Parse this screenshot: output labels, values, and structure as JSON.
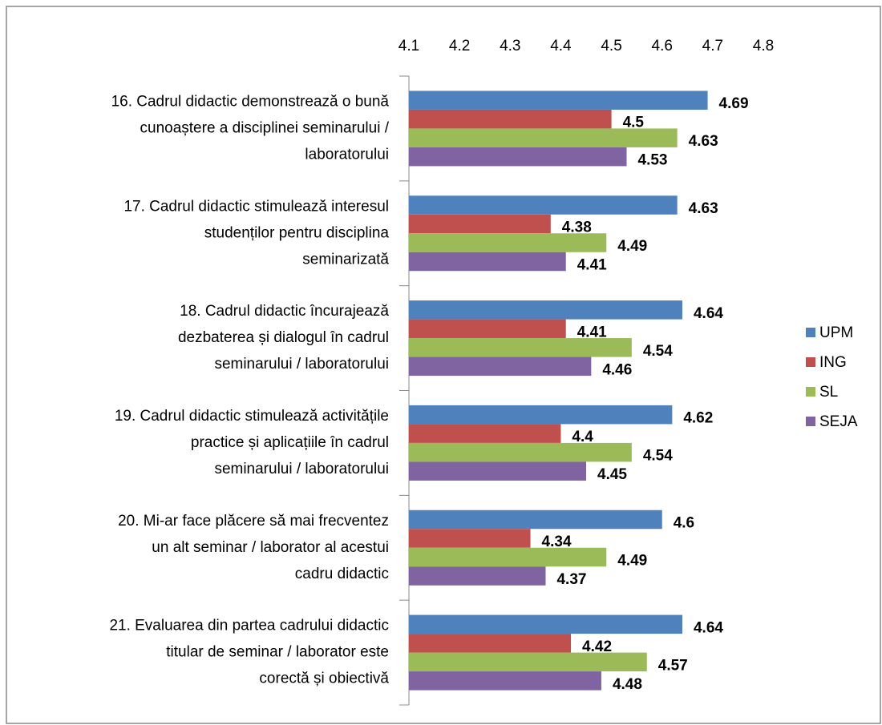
{
  "chart_data": {
    "type": "bar",
    "orientation": "horizontal",
    "categories": [
      [
        "16. Cadrul didactic demonstrează o bună",
        "cunoaștere a disciplinei seminarului /",
        "laboratorului"
      ],
      [
        "17. Cadrul didactic stimulează interesul",
        "studenților pentru disciplina",
        "seminarizată"
      ],
      [
        "18. Cadrul didactic încurajează",
        "dezbaterea și dialogul în cadrul",
        "seminarului / laboratorului"
      ],
      [
        "19. Cadrul didactic stimulează activitățile",
        "practice și aplicațiile în cadrul",
        "seminarului / laboratorului"
      ],
      [
        "20. Mi-ar face plăcere să mai frecventez",
        "un alt seminar / laborator al acestui",
        "cadru didactic"
      ],
      [
        "21. Evaluarea din partea cadrului didactic",
        "titular de seminar / laborator este",
        "corectă și obiectivă"
      ]
    ],
    "series": [
      {
        "name": "UPM",
        "color": "#4f81bd",
        "values": [
          4.69,
          4.63,
          4.64,
          4.62,
          4.6,
          4.64
        ]
      },
      {
        "name": "ING",
        "color": "#c0504d",
        "values": [
          4.5,
          4.38,
          4.41,
          4.4,
          4.34,
          4.42
        ]
      },
      {
        "name": "SL",
        "color": "#9bbb59",
        "values": [
          4.63,
          4.49,
          4.54,
          4.54,
          4.49,
          4.57
        ]
      },
      {
        "name": "SEJA",
        "color": "#8064a2",
        "values": [
          4.53,
          4.41,
          4.46,
          4.45,
          4.37,
          4.48
        ]
      }
    ],
    "xlim": [
      4.1,
      4.8
    ],
    "xticks": [
      4.1,
      4.2,
      4.3,
      4.4,
      4.5,
      4.6,
      4.7,
      4.8
    ],
    "legend": "right"
  }
}
